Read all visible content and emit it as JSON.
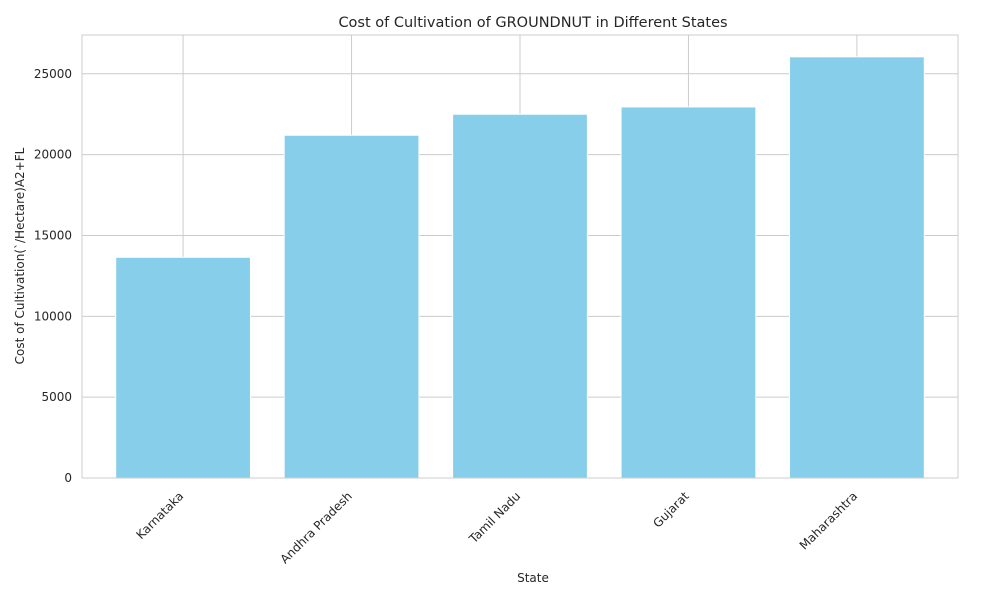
{
  "chart_data": {
    "type": "bar",
    "title": "Cost of Cultivation of GROUNDNUT in Different States",
    "xlabel": "State",
    "ylabel": "Cost of Cultivation(`/Hectare)A2+FL",
    "categories": [
      "Karnataka",
      "Andhra Pradesh",
      "Tamil Nadu",
      "Gujarat",
      "Maharashtra"
    ],
    "values": [
      13650,
      21200,
      22500,
      22950,
      26050
    ],
    "ylim": [
      0,
      27400
    ],
    "yticks": [
      0,
      5000,
      10000,
      15000,
      20000,
      25000
    ],
    "grid": true,
    "legend": "none",
    "colors": {
      "bar": "#87CEEB",
      "grid": "#cccccc",
      "frame": "#cccccc",
      "text": "#262626"
    }
  }
}
